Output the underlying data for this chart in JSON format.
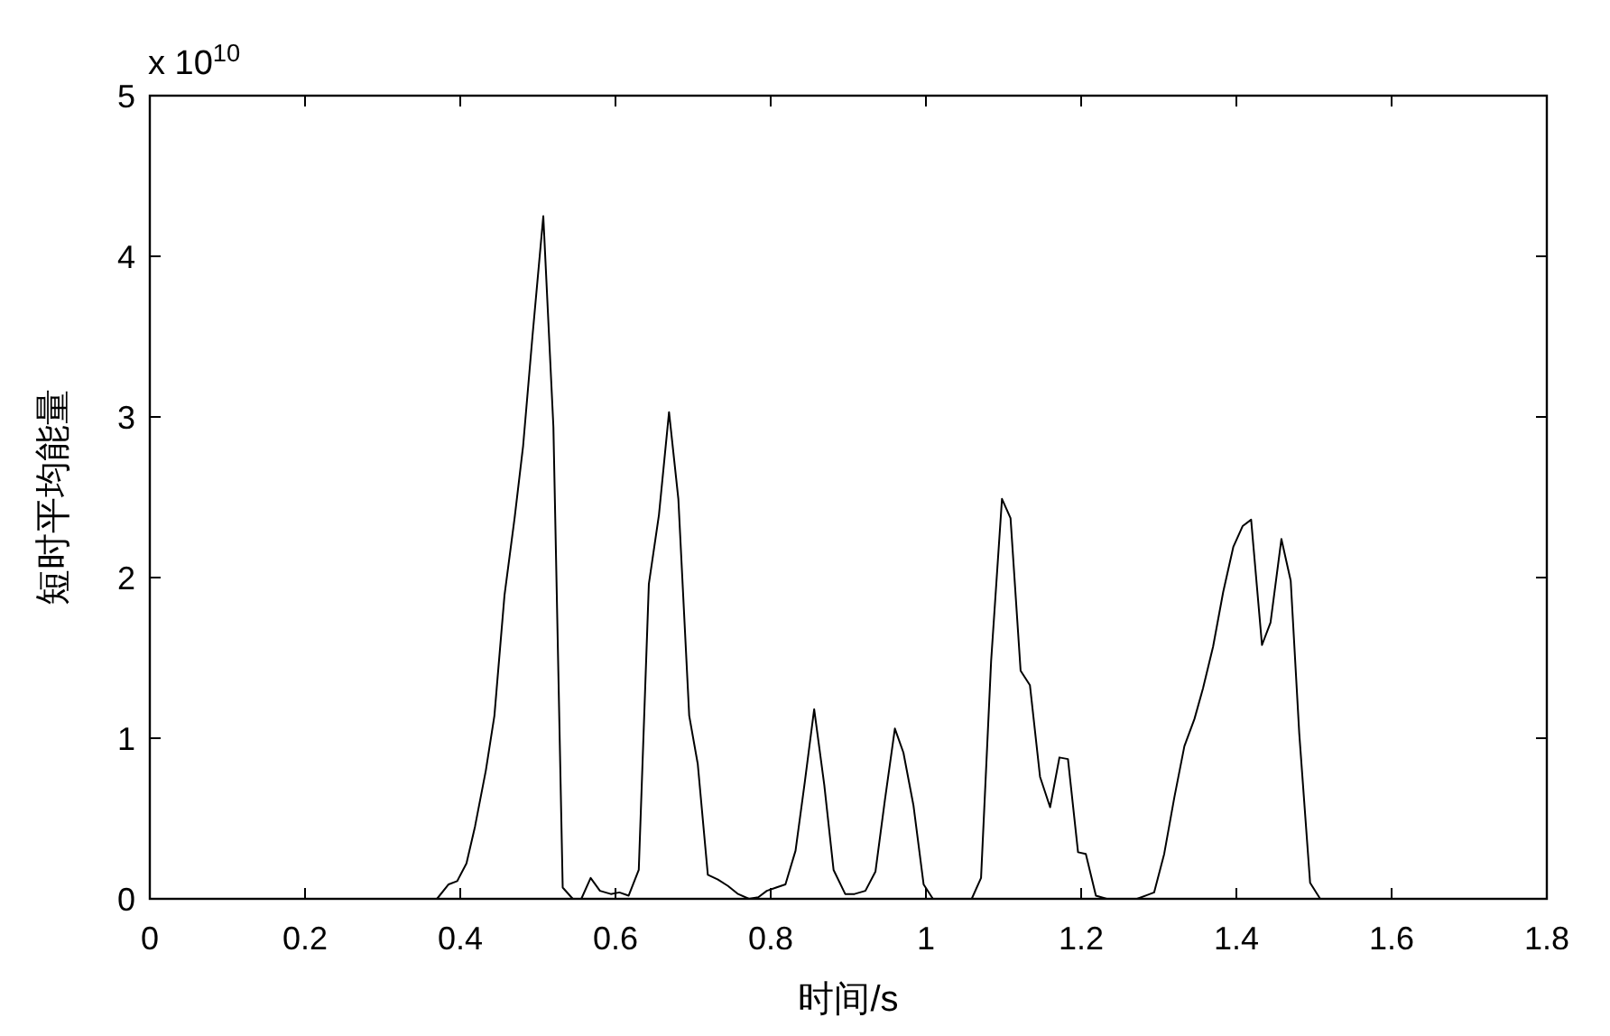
{
  "chart_data": {
    "type": "line",
    "xlabel": "时间/s",
    "ylabel": "短时平均能量",
    "annotations": [
      "x 10$^{10}$"
    ],
    "x": [
      0,
      0.37,
      0.385,
      0.396,
      0.408,
      0.419,
      0.433,
      0.444,
      0.457,
      0.47,
      0.481,
      0.493,
      0.507,
      0.52,
      0.532,
      0.545,
      0.556,
      0.568,
      0.58,
      0.594,
      0.605,
      0.617,
      0.63,
      0.643,
      0.656,
      0.669,
      0.681,
      0.695,
      0.706,
      0.719,
      0.732,
      0.745,
      0.758,
      0.772,
      0.784,
      0.795,
      0.807,
      0.819,
      0.832,
      0.844,
      0.856,
      0.869,
      0.881,
      0.896,
      0.908,
      0.922,
      0.935,
      0.947,
      0.96,
      0.971,
      0.984,
      0.997,
      1.009,
      1.059,
      1.071,
      1.084,
      1.098,
      1.109,
      1.122,
      1.134,
      1.147,
      1.16,
      1.172,
      1.183,
      1.196,
      1.206,
      1.219,
      1.233,
      1.272,
      1.294,
      1.307,
      1.32,
      1.333,
      1.346,
      1.357,
      1.37,
      1.383,
      1.396,
      1.408,
      1.419,
      1.433,
      1.444,
      1.458,
      1.47,
      1.481,
      1.495,
      1.508,
      1.775
    ],
    "values": [
      0,
      0,
      0.09,
      0.11,
      0.22,
      0.45,
      0.8,
      1.14,
      1.89,
      2.37,
      2.82,
      3.5,
      4.25,
      2.94,
      0.07,
      0,
      0,
      0.13,
      0.05,
      0.03,
      0.04,
      0.02,
      0.18,
      1.96,
      2.39,
      3.03,
      2.49,
      1.14,
      0.84,
      0.15,
      0.12,
      0.08,
      0.03,
      0,
      0.01,
      0.05,
      0.07,
      0.09,
      0.3,
      0.73,
      1.18,
      0.71,
      0.18,
      0.03,
      0.03,
      0.05,
      0.17,
      0.61,
      1.06,
      0.91,
      0.58,
      0.09,
      0,
      0,
      0.13,
      1.48,
      2.49,
      2.37,
      1.42,
      1.33,
      0.76,
      0.57,
      0.88,
      0.87,
      0.29,
      0.28,
      0.02,
      0,
      0,
      0.04,
      0.28,
      0.63,
      0.95,
      1.12,
      1.31,
      1.57,
      1.91,
      2.19,
      2.32,
      2.36,
      1.58,
      1.72,
      2.24,
      1.98,
      1.03,
      0.1,
      0,
      0
    ],
    "color": "#000000",
    "line_style": "solid",
    "xlim": [
      0,
      1.8
    ],
    "xticks": [
      0,
      0.2,
      0.4,
      0.6,
      0.8,
      1,
      1.2,
      1.4,
      1.6,
      1.8
    ],
    "ylim": [
      0,
      5
    ],
    "yticks": [
      0,
      1,
      2,
      3,
      4,
      5
    ]
  }
}
